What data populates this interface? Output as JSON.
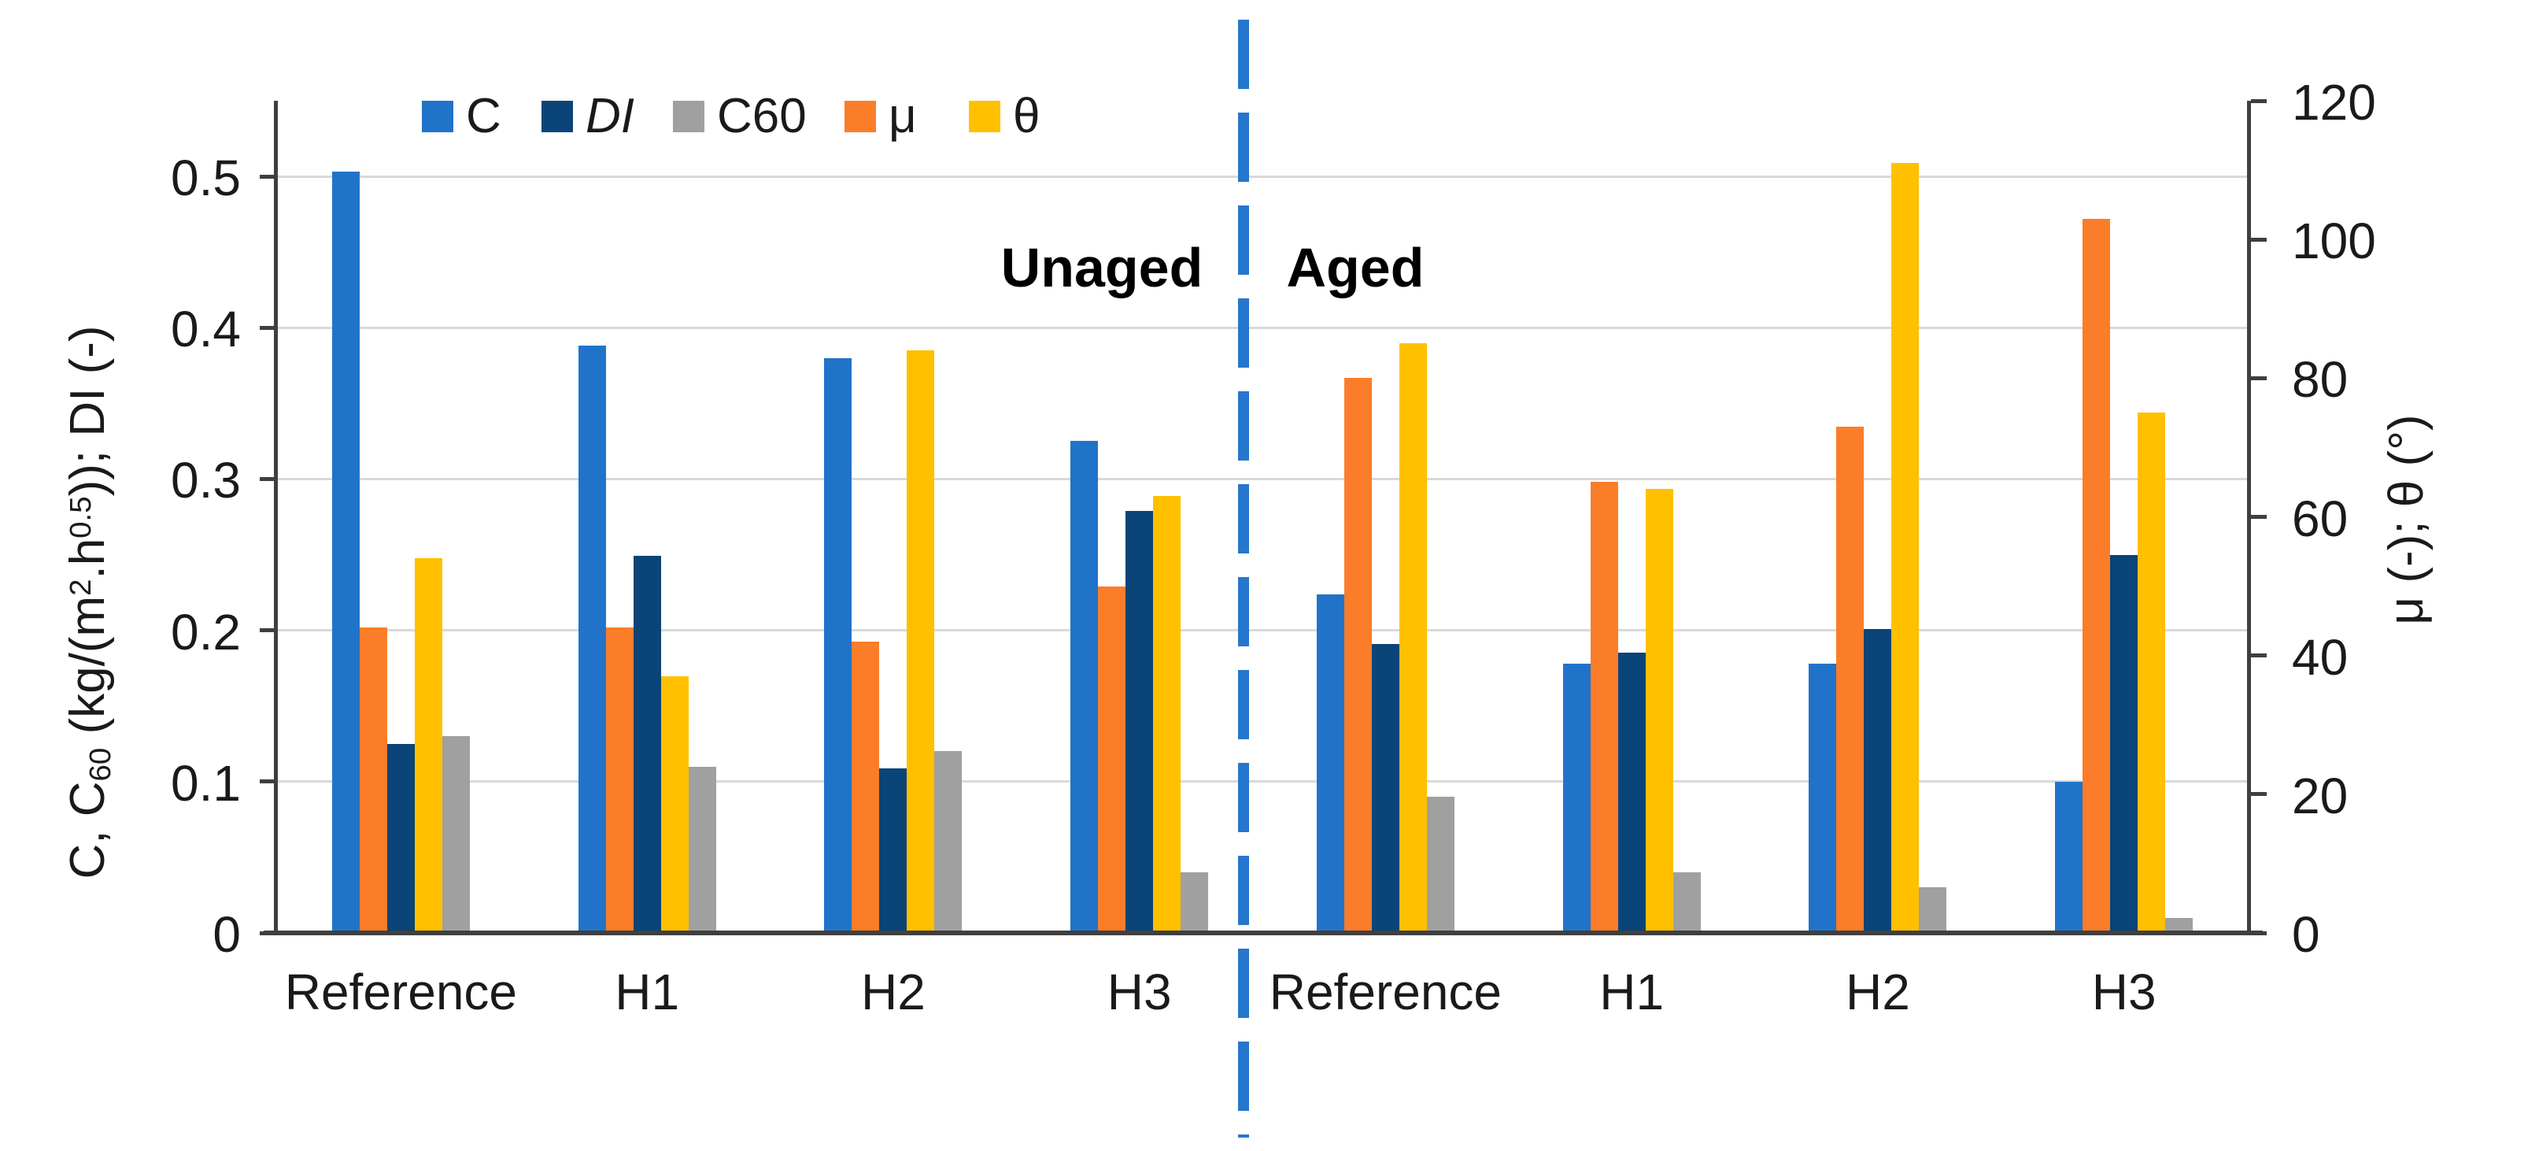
{
  "chart_data": {
    "type": "bar",
    "title": "",
    "categories": [
      "Reference",
      "H1",
      "H2",
      "H3",
      "Reference",
      "H1",
      "H2",
      "H3"
    ],
    "section_labels": [
      {
        "text": "Unaged"
      },
      {
        "text": "Aged"
      }
    ],
    "legend_order": [
      "C",
      "DI",
      "C60",
      "μ",
      "θ"
    ],
    "bar_order": [
      "C",
      "μ",
      "DI",
      "θ",
      "C60"
    ],
    "series": [
      {
        "name": "C",
        "axis": "left",
        "italic": false,
        "color": "#2173C9",
        "values": [
          0.503,
          0.388,
          0.38,
          0.325,
          0.224,
          0.178,
          0.178,
          0.1
        ]
      },
      {
        "name": "DI",
        "axis": "left",
        "italic": true,
        "color": "#0A4478",
        "values": [
          0.125,
          0.249,
          0.109,
          0.279,
          0.191,
          0.185,
          0.201,
          0.25
        ]
      },
      {
        "name": "C60",
        "axis": "left",
        "italic": false,
        "color": "#A0A0A0",
        "values": [
          0.13,
          0.11,
          0.12,
          0.04,
          0.09,
          0.04,
          0.03,
          0.01
        ]
      },
      {
        "name": "μ",
        "axis": "right",
        "italic": false,
        "color": "#FB7D29",
        "values": [
          44,
          44,
          42,
          50,
          80,
          65,
          73,
          103
        ]
      },
      {
        "name": "θ",
        "axis": "right",
        "italic": false,
        "color": "#FFC000",
        "values": [
          54,
          37,
          84,
          63,
          85,
          64,
          111,
          75
        ]
      }
    ],
    "left_axis": {
      "title_segments": [
        {
          "t": "C, C"
        },
        {
          "t": "60",
          "style": "sub"
        },
        {
          "t": " (kg/(m"
        },
        {
          "t": "2",
          "style": "sup"
        },
        {
          "t": ".h"
        },
        {
          "t": "0.5",
          "style": "sup"
        },
        {
          "t": ")); DI (-)"
        }
      ],
      "tick_labels": [
        "0",
        "0.1",
        "0.2",
        "0.3",
        "0.4",
        "0.5"
      ],
      "tick_values": [
        0,
        0.1,
        0.2,
        0.3,
        0.4,
        0.5
      ],
      "max": 0.55
    },
    "right_axis": {
      "title": "μ (-); θ (°)",
      "tick_labels": [
        "0",
        "20",
        "40",
        "60",
        "80",
        "100",
        "120"
      ],
      "tick_values": [
        0,
        20,
        40,
        60,
        80,
        100,
        120
      ],
      "max": 120
    },
    "divider_color": "#2776CE",
    "gridline_color": "#D9D9D9",
    "axis_color": "#3F3F3F",
    "legend_position": "top",
    "grid": "horizontal-only"
  }
}
